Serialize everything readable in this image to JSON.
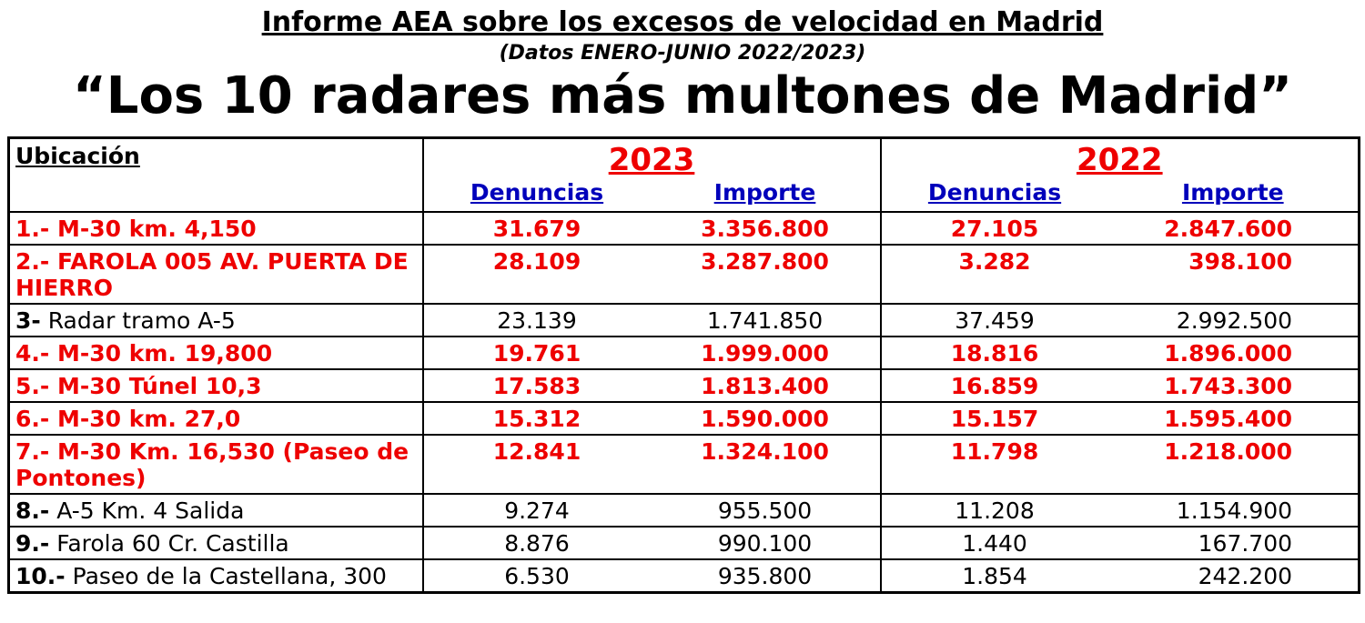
{
  "header": {
    "title": "Informe AEA sobre los excesos de velocidad en Madrid",
    "subtitle": "(Datos ENERO-JUNIO 2022/2023)",
    "main_title": "“Los 10 radares más multones de Madrid”"
  },
  "colors": {
    "highlight_red": "#ee0000",
    "subheader_blue": "#0000bb",
    "text_black": "#000000"
  },
  "table": {
    "location_header": "Ubicación",
    "years": [
      {
        "label": "2023"
      },
      {
        "label": "2022"
      }
    ],
    "sub_headers": [
      "Denuncias",
      "Importe",
      "Denuncias",
      "Importe"
    ],
    "rows": [
      {
        "num": "1.-",
        "name": "M-30 km. 4,150",
        "highlight": true,
        "values": [
          "31.679",
          "3.356.800",
          "27.105",
          "2.847.600"
        ]
      },
      {
        "num": "2.-",
        "name": "FAROLA 005 AV. PUERTA DE HIERRO",
        "highlight": true,
        "values": [
          "28.109",
          "3.287.800",
          "3.282",
          "398.100"
        ]
      },
      {
        "num": "3-",
        "name": "Radar tramo A-5",
        "highlight": false,
        "values": [
          "23.139",
          "1.741.850",
          "37.459",
          "2.992.500"
        ]
      },
      {
        "num": "4.-",
        "name": "M-30 km. 19,800",
        "highlight": true,
        "values": [
          "19.761",
          "1.999.000",
          "18.816",
          "1.896.000"
        ]
      },
      {
        "num": "5.-",
        "name": "M-30 Túnel 10,3",
        "highlight": true,
        "values": [
          "17.583",
          "1.813.400",
          "16.859",
          "1.743.300"
        ]
      },
      {
        "num": "6.-",
        "name": "M-30 km. 27,0",
        "highlight": true,
        "values": [
          "15.312",
          "1.590.000",
          "15.157",
          "1.595.400"
        ]
      },
      {
        "num": "7.-",
        "name": "M-30 Km. 16,530 (Paseo de Pontones)",
        "highlight": true,
        "values": [
          "12.841",
          "1.324.100",
          "11.798",
          "1.218.000"
        ]
      },
      {
        "num": "8.-",
        "name": "A-5 Km. 4 Salida",
        "highlight": false,
        "values": [
          "9.274",
          "955.500",
          "11.208",
          "1.154.900"
        ]
      },
      {
        "num": "9.-",
        "name": "Farola 60 Cr. Castilla",
        "highlight": false,
        "values": [
          "8.876",
          "990.100",
          "1.440",
          "167.700"
        ]
      },
      {
        "num": "10.-",
        "name": "Paseo de la Castellana, 300",
        "highlight": false,
        "values": [
          "6.530",
          "935.800",
          "1.854",
          "242.200"
        ]
      }
    ]
  }
}
